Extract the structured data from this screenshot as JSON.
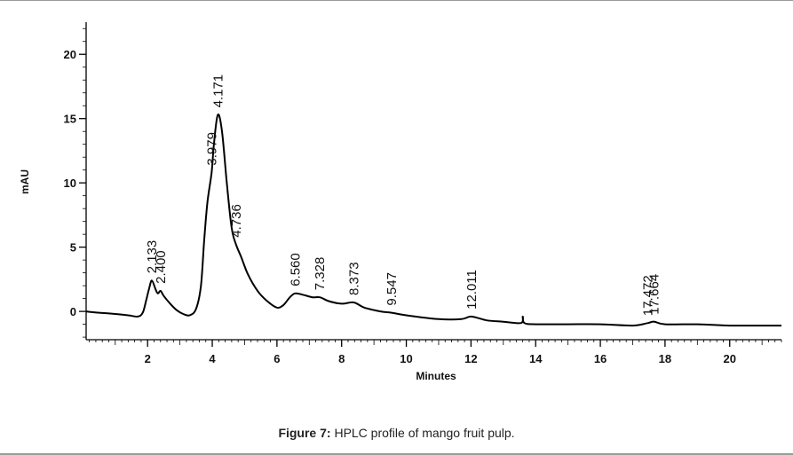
{
  "figure": {
    "caption_bold": "Figure 7:",
    "caption_text": " HPLC profile of mango fruit pulp."
  },
  "chart_data": {
    "type": "line",
    "title": "",
    "xlabel": "Minutes",
    "ylabel": "mAU",
    "xlim": [
      0.1,
      21.6
    ],
    "ylim": [
      -2.2,
      22.5
    ],
    "x_ticks": [
      2,
      4,
      6,
      8,
      10,
      12,
      14,
      16,
      18,
      20
    ],
    "y_ticks": [
      0,
      5,
      10,
      15,
      20
    ],
    "grid": false,
    "legend": "none",
    "line_color": "#000000",
    "series": [
      {
        "x": [
          0.1,
          0.5,
          1.0,
          1.4,
          1.7,
          1.85,
          1.95,
          2.05,
          2.133,
          2.25,
          2.32,
          2.4,
          2.5,
          2.7,
          2.9,
          3.1,
          3.3,
          3.5,
          3.65,
          3.75,
          3.85,
          3.979,
          4.05,
          4.171,
          4.3,
          4.45,
          4.6,
          4.736,
          4.9,
          5.1,
          5.4,
          5.7,
          6.0,
          6.2,
          6.4,
          6.56,
          6.8,
          7.1,
          7.328,
          7.6,
          8.0,
          8.373,
          8.7,
          9.2,
          9.547,
          10.0,
          11.0,
          11.7,
          12.011,
          12.5,
          13.0,
          13.55,
          13.6,
          13.65,
          14.0,
          15.0,
          16.0,
          17.0,
          17.472,
          17.664,
          18.0,
          19.0,
          20.0,
          21.0,
          21.6
        ],
        "y": [
          0.0,
          -0.1,
          -0.2,
          -0.3,
          -0.4,
          -0.1,
          0.8,
          1.8,
          2.4,
          1.7,
          1.4,
          1.6,
          1.2,
          0.6,
          0.1,
          -0.2,
          -0.3,
          0.2,
          2.0,
          5.5,
          8.5,
          10.8,
          13.0,
          15.3,
          14.0,
          10.0,
          6.5,
          5.2,
          4.2,
          2.9,
          1.6,
          0.8,
          0.3,
          0.5,
          1.1,
          1.4,
          1.3,
          1.1,
          1.1,
          0.8,
          0.6,
          0.7,
          0.3,
          0.0,
          -0.1,
          -0.3,
          -0.6,
          -0.6,
          -0.4,
          -0.7,
          -0.8,
          -0.9,
          -0.4,
          -0.9,
          -1.0,
          -1.0,
          -1.0,
          -1.1,
          -0.9,
          -0.8,
          -1.0,
          -1.0,
          -1.1,
          -1.1,
          -1.1
        ]
      }
    ],
    "annotations": [
      {
        "label": "2.133",
        "x": 2.133,
        "y": 2.4
      },
      {
        "label": "2.400",
        "x": 2.4,
        "y": 1.6
      },
      {
        "label": "3.979",
        "x": 3.979,
        "y": 10.8
      },
      {
        "label": "4.171",
        "x": 4.171,
        "y": 15.3
      },
      {
        "label": "4.736",
        "x": 4.736,
        "y": 5.2
      },
      {
        "label": "6.560",
        "x": 6.56,
        "y": 1.4
      },
      {
        "label": "7.328",
        "x": 7.328,
        "y": 1.1
      },
      {
        "label": "8.373",
        "x": 8.373,
        "y": 0.7
      },
      {
        "label": "9.547",
        "x": 9.547,
        "y": -0.1
      },
      {
        "label": "12.011",
        "x": 12.011,
        "y": -0.4
      },
      {
        "label": "17.472",
        "x": 17.472,
        "y": -0.9
      },
      {
        "label": "17.664",
        "x": 17.664,
        "y": -0.8
      }
    ]
  }
}
